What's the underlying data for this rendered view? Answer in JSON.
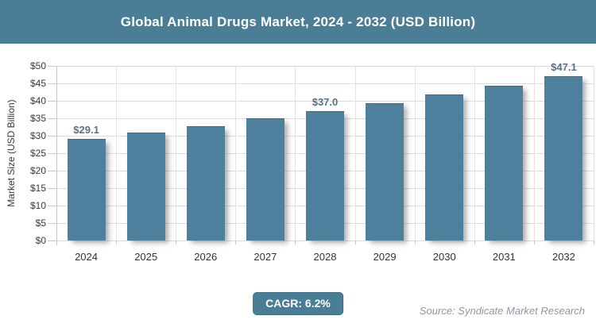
{
  "header": {
    "title": "Global Animal Drugs Market, 2024 - 2032 (USD Billion)",
    "bg_color": "#4A7E96",
    "text_color": "#FFFFFF"
  },
  "chart_data": {
    "type": "bar",
    "title": "Global Animal Drugs Market, 2024 - 2032 (USD Billion)",
    "categories": [
      "2024",
      "2025",
      "2026",
      "2027",
      "2028",
      "2029",
      "2030",
      "2031",
      "2032"
    ],
    "values": [
      29.1,
      30.9,
      32.8,
      34.9,
      37.0,
      39.3,
      41.8,
      44.4,
      47.1
    ],
    "bar_labels": [
      "$29.1",
      "",
      "",
      "",
      "$37.0",
      "",
      "",
      "",
      "$47.1"
    ],
    "xlabel": "",
    "ylabel": "Market Size (USD Billion)",
    "ylim": [
      0,
      50
    ],
    "ytick_step": 5,
    "ytick_prefix": "$",
    "grid": true,
    "legend": "none",
    "bar_color": "#4D809C",
    "bar_label_color": "#5A7183"
  },
  "footer": {
    "cagr_label": "CAGR: 6.2%",
    "source": "Source: Syndicate Market Research"
  }
}
